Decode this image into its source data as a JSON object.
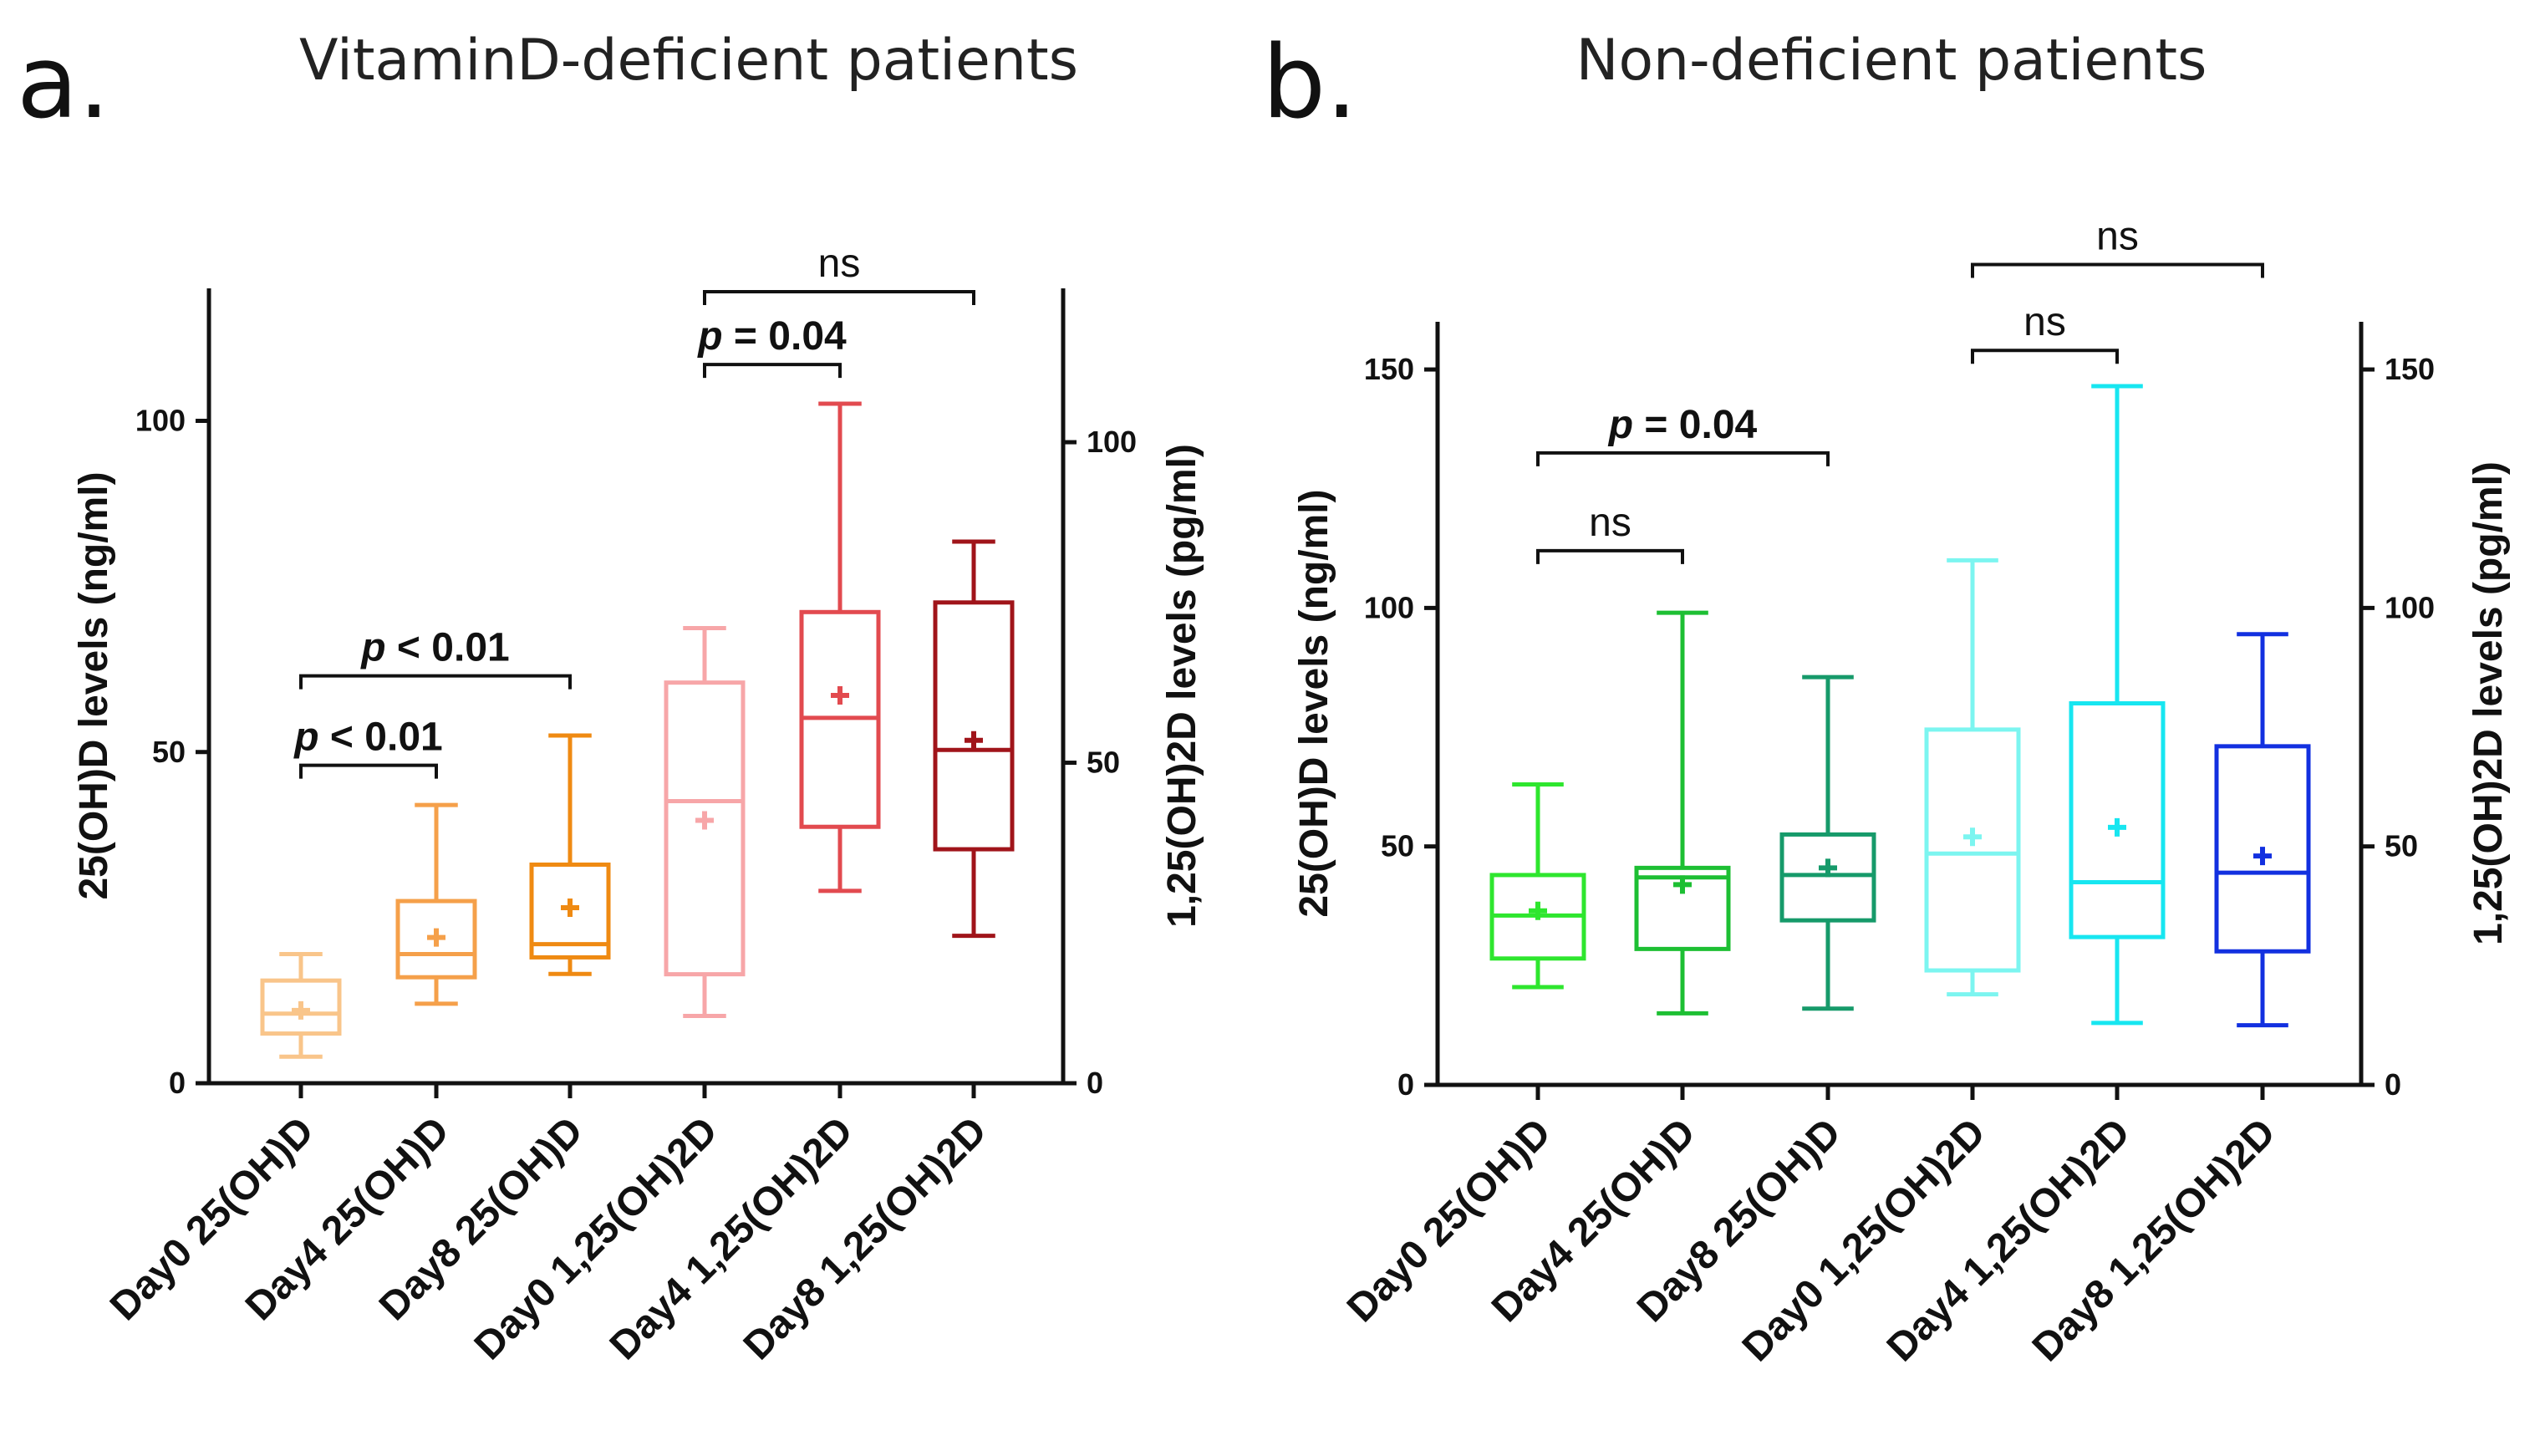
{
  "chart_data": [
    {
      "type": "box",
      "panel_label": "a.",
      "title": "VitaminD-deficient patients",
      "ylabel_left": "25(OH)D levels (ng/ml)",
      "ylabel_right": "1,25(OH)2D levels (pg/ml)",
      "ylim_left": [
        0,
        120
      ],
      "yticks_left": [
        0,
        50,
        100
      ],
      "ylim_right": [
        0,
        124
      ],
      "yticks_right": [
        0,
        50,
        100
      ],
      "categories": [
        "Day0  25(OH)D",
        "Day4  25(OH)D",
        "Day8 25(OH)D",
        "Day0  1,25(OH)2D",
        "Day4 1,25(OH)2D",
        "Day8 1,25(OH)2D"
      ],
      "boxes": [
        {
          "axis": "left",
          "min": 4,
          "q1": 7.5,
          "median": 10.5,
          "q3": 15.5,
          "max": 19.5,
          "mean": 11,
          "color": "#f9c58a"
        },
        {
          "axis": "left",
          "min": 12,
          "q1": 16,
          "median": 19.5,
          "q3": 27.5,
          "max": 42,
          "mean": 22,
          "color": "#f5a04a"
        },
        {
          "axis": "left",
          "min": 16.5,
          "q1": 19,
          "median": 21,
          "q3": 33,
          "max": 52.5,
          "mean": 26.5,
          "color": "#ef8a12"
        },
        {
          "axis": "right",
          "min": 10.5,
          "q1": 17,
          "median": 44,
          "q3": 62.5,
          "max": 71,
          "mean": 41,
          "color": "#f7a6a8"
        },
        {
          "axis": "right",
          "min": 30,
          "q1": 40,
          "median": 57,
          "q3": 73.5,
          "max": 106,
          "mean": 60.5,
          "color": "#e24a4f"
        },
        {
          "axis": "right",
          "min": 23,
          "q1": 36.5,
          "median": 52,
          "q3": 75,
          "max": 84.5,
          "mean": 53.5,
          "color": "#a0141a"
        }
      ],
      "comparisons": [
        {
          "from": 0,
          "to": 1,
          "label": "p < 0.01",
          "bold": true,
          "level": 48
        },
        {
          "from": 0,
          "to": 2,
          "label": "p < 0.01",
          "bold": true,
          "level": 61.5
        },
        {
          "from": 3,
          "to": 4,
          "label": "p = 0.04",
          "bold": true,
          "level": 108.5
        },
        {
          "from": 3,
          "to": 5,
          "label": "ns",
          "bold": false,
          "level": 119.5
        }
      ]
    },
    {
      "type": "box",
      "panel_label": "b.",
      "title": "Non-deficient patients",
      "ylabel_left": "25(OH)D levels (ng/ml)",
      "ylabel_right": "1,25(OH)2D levels (pg/ml)",
      "ylim_left": [
        0,
        160
      ],
      "yticks_left": [
        0,
        50,
        100,
        150
      ],
      "ylim_right": [
        0,
        160
      ],
      "yticks_right": [
        0,
        50,
        100,
        150
      ],
      "categories": [
        "Day0  25(OH)D",
        "Day4  25(OH)D",
        "Day8  25(OH)D",
        "Day0  1,25(OH)2D",
        "Day4  1,25(OH)2D",
        "Day8  1,25(OH)2D"
      ],
      "boxes": [
        {
          "axis": "left",
          "min": 20.5,
          "q1": 26.5,
          "median": 35.5,
          "q3": 44,
          "max": 63,
          "mean": 36.5,
          "color": "#2ee62e"
        },
        {
          "axis": "left",
          "min": 15,
          "q1": 28.5,
          "median": 43.5,
          "q3": 45.5,
          "max": 99,
          "mean": 42,
          "color": "#1dbf33"
        },
        {
          "axis": "left",
          "min": 16,
          "q1": 34.5,
          "median": 44,
          "q3": 52.5,
          "max": 85.5,
          "mean": 45.5,
          "color": "#169a6a"
        },
        {
          "axis": "right",
          "min": 19,
          "q1": 24,
          "median": 48.5,
          "q3": 74.5,
          "max": 110,
          "mean": 52,
          "color": "#7cf5f0"
        },
        {
          "axis": "right",
          "min": 13,
          "q1": 31,
          "median": 42.5,
          "q3": 80,
          "max": 146.5,
          "mean": 54,
          "color": "#17e6f0"
        },
        {
          "axis": "right",
          "min": 12.5,
          "q1": 28,
          "median": 44.5,
          "q3": 71,
          "max": 94.5,
          "mean": 48,
          "color": "#1230e0"
        }
      ],
      "comparisons": [
        {
          "from": 0,
          "to": 1,
          "label": "ns",
          "bold": false,
          "level": 112
        },
        {
          "from": 0,
          "to": 2,
          "label": "p = 0.04",
          "bold": true,
          "level": 132.5
        },
        {
          "from": 3,
          "to": 4,
          "label": "ns",
          "bold": false,
          "level": 154
        },
        {
          "from": 3,
          "to": 5,
          "label": "ns",
          "bold": false,
          "level": 172
        }
      ]
    }
  ]
}
